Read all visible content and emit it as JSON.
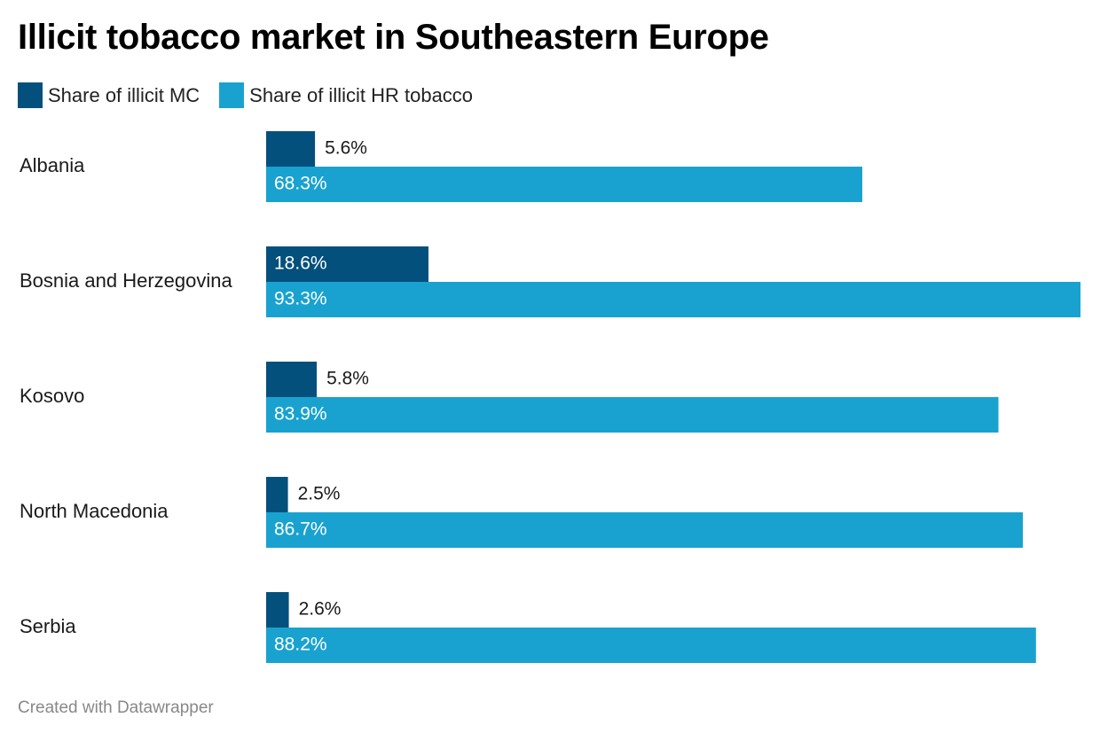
{
  "title": "Illicit tobacco market in Southeastern Europe",
  "footer": "Created with Datawrapper",
  "colors": {
    "mc": "#04507c",
    "hr": "#19a2cf"
  },
  "legend": [
    {
      "label": "Share of illicit MC",
      "color": "#04507c"
    },
    {
      "label": "Share of illicit HR tobacco",
      "color": "#19a2cf"
    }
  ],
  "chart_data": {
    "type": "bar",
    "orientation": "horizontal",
    "categories": [
      "Albania",
      "Bosnia and Herzegovina",
      "Kosovo",
      "North Macedonia",
      "Serbia"
    ],
    "series": [
      {
        "name": "Share of illicit MC",
        "values": [
          5.6,
          18.6,
          5.8,
          2.5,
          2.6
        ],
        "labels": [
          "5.6%",
          "18.6%",
          "5.8%",
          "2.5%",
          "2.6%"
        ]
      },
      {
        "name": "Share of illicit HR tobacco",
        "values": [
          68.3,
          93.3,
          83.9,
          86.7,
          88.2
        ],
        "labels": [
          "68.3%",
          "93.3%",
          "83.9%",
          "86.7%",
          "88.2%"
        ]
      }
    ],
    "xlim": [
      0,
      93.3
    ],
    "unit": "%",
    "grid": false,
    "legend_position": "top-left"
  }
}
